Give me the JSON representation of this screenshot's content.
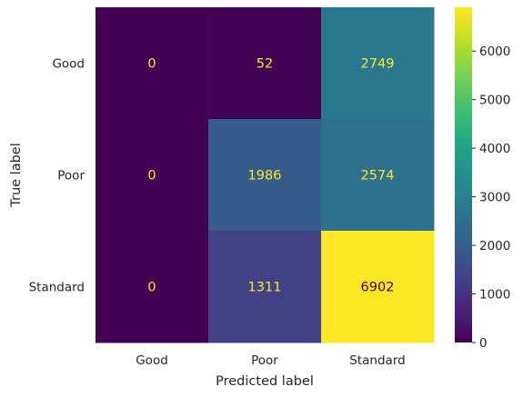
{
  "chart_data": {
    "type": "heatmap",
    "title": "",
    "xlabel": "Predicted label",
    "ylabel": "True label",
    "x_categories": [
      "Good",
      "Poor",
      "Standard"
    ],
    "y_categories": [
      "Good",
      "Poor",
      "Standard"
    ],
    "values": [
      [
        0,
        52,
        2749
      ],
      [
        0,
        1986,
        2574
      ],
      [
        0,
        1311,
        6902
      ]
    ],
    "colormap": "viridis",
    "colorbar": {
      "range": [
        0,
        6902
      ],
      "ticks": [
        0,
        1000,
        2000,
        3000,
        4000,
        5000,
        6000
      ]
    },
    "grid": false,
    "text_colors": {
      "light": "#fde725",
      "dark": "#440154"
    }
  }
}
